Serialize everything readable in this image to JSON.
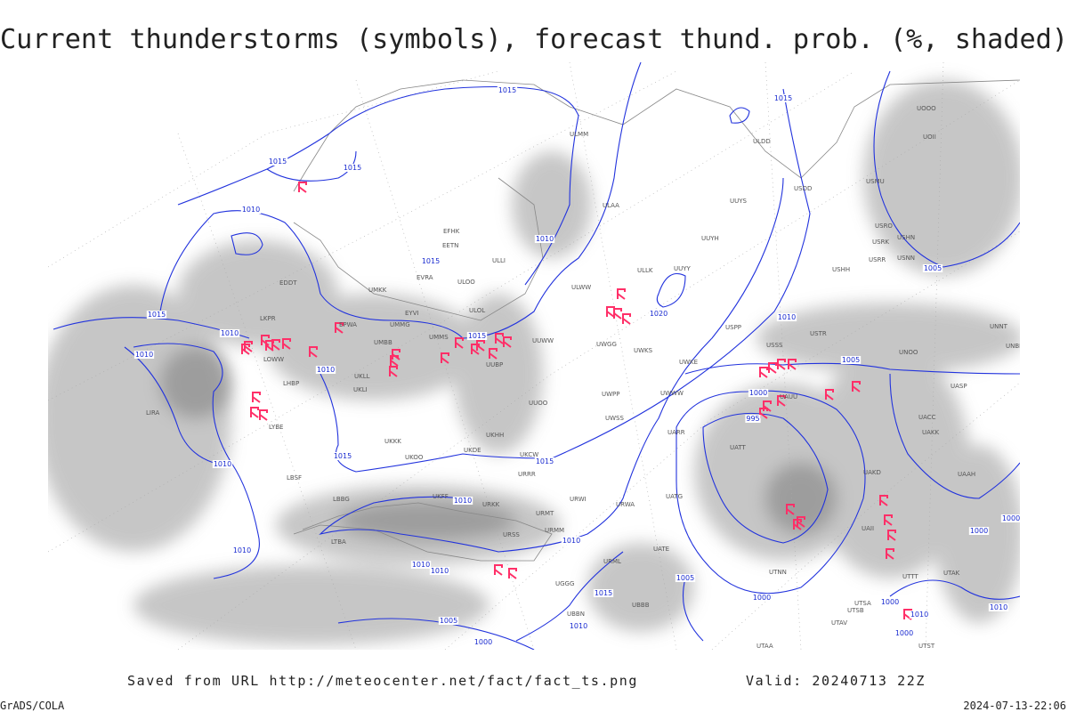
{
  "header": {
    "title": "Current thunderstorms (symbols), forecast thund. prob. (%, shaded)"
  },
  "isobar_labels": [
    1015,
    1015,
    1015,
    1015,
    1010,
    1010,
    1015,
    1015,
    1010,
    1010,
    1015,
    1010,
    1020,
    1010,
    1005,
    1005,
    1000,
    995,
    1010,
    1015,
    1015,
    1010,
    1010,
    1010,
    1010,
    1010,
    1005,
    1015,
    1000,
    1005,
    1010,
    1000,
    1000,
    1010,
    1010,
    1000,
    1000,
    1000
  ],
  "stations": [
    "ULMM",
    "UUYS",
    "ULAA",
    "UUYH",
    "ULLK",
    "UUYY",
    "ULWW",
    "ULOL",
    "ULOO",
    "EVRA",
    "EFHK",
    "EETN",
    "ULLI",
    "UMKK",
    "EDDT",
    "EPWA",
    "UMMG",
    "EYVI",
    "UMBB",
    "UMMS",
    "UUBP",
    "UUWW",
    "UWGG",
    "UWKS",
    "UWKE",
    "USPP",
    "USSS",
    "USTR",
    "UNOO",
    "UNBB",
    "UNNT",
    "USHH",
    "USRR",
    "USNN",
    "USRK",
    "USRO",
    "USHN",
    "USMU",
    "UOII",
    "UOOO",
    "ULDD",
    "USDD",
    "UUOO",
    "URWA",
    "UATG",
    "UATE",
    "URML",
    "URMM",
    "URMT",
    "URRR",
    "URWI",
    "UKOO",
    "UKKK",
    "UKHH",
    "UWPP",
    "UWSS",
    "UWWW",
    "UARR",
    "UATT",
    "UAUU",
    "UACC",
    "UAKK",
    "UASP",
    "UAKD",
    "UAII",
    "UTNN",
    "UTAA",
    "UTSB",
    "UTAV",
    "UTSA",
    "UTST",
    "UTTT",
    "UTAK",
    "UAAH",
    "UBBB",
    "UGGG",
    "UBBN",
    "URSS",
    "UKFF",
    "URKK",
    "LBSF",
    "LBBG",
    "LTBA",
    "LYBE",
    "LHBP",
    "LKPR",
    "LOWW",
    "LIRA",
    "UKLL",
    "UKLI",
    "UKCW",
    "UKDE"
  ],
  "footer": {
    "source": "Saved from URL http://meteocenter.net/fact/fact_ts.png",
    "valid": "Valid: 20240713 22Z",
    "credit": "GrADS/COLA",
    "timestamp": "2024-07-13-22:06"
  }
}
